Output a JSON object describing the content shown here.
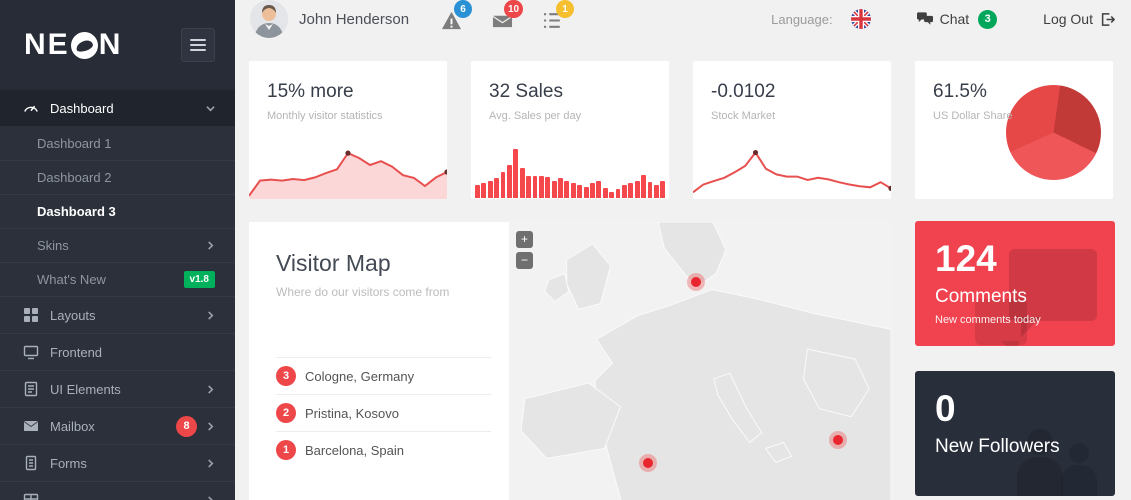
{
  "colors": {
    "accent_red": "#ee4749",
    "sidebar_bg": "#2b303a",
    "content_bg": "#f1f1f1",
    "green_badge": "#00b15c",
    "blue_badge": "#2a92d4",
    "yellow_badge": "#f5bf2f"
  },
  "sidebar": {
    "logo_part1": "NE",
    "logo_part2": "N",
    "items": [
      {
        "label": "Dashboard"
      },
      {
        "label": "Dashboard 1"
      },
      {
        "label": "Dashboard 2"
      },
      {
        "label": "Dashboard 3"
      },
      {
        "label": "Skins"
      },
      {
        "label": "What's New",
        "badge": "v1.8"
      },
      {
        "label": "Layouts"
      },
      {
        "label": "Frontend"
      },
      {
        "label": "UI Elements"
      },
      {
        "label": "Mailbox",
        "badge": "8"
      },
      {
        "label": "Forms"
      }
    ]
  },
  "topbar": {
    "user_name": "John Henderson",
    "alerts_count": "6",
    "messages_count": "10",
    "tasks_count": "1",
    "language_label": "Language:",
    "chat_label": "Chat",
    "chat_count": "3",
    "logout_label": "Log Out"
  },
  "stats": [
    {
      "title": "15% more",
      "subtitle": "Monthly visitor statistics"
    },
    {
      "title": "32 Sales",
      "subtitle": "Avg. Sales per day"
    },
    {
      "title": "-0.0102",
      "subtitle": "Stock Market"
    },
    {
      "title": "61.5%",
      "subtitle": "US Dollar Share"
    }
  ],
  "visitor_map": {
    "title": "Visitor Map",
    "subtitle": "Where do our visitors come from",
    "locations": [
      {
        "count": "3",
        "label": "Cologne, Germany"
      },
      {
        "count": "2",
        "label": "Pristina, Kosovo"
      },
      {
        "count": "1",
        "label": "Barcelona, Spain"
      }
    ],
    "zoom_in": "+",
    "zoom_out": "−",
    "markers": [
      {
        "label": "Cologne, Germany",
        "x": 49,
        "y": 20
      },
      {
        "label": "Barcelona, Spain",
        "x": 36.5,
        "y": 81
      },
      {
        "label": "Pristina, Kosovo",
        "x": 86,
        "y": 73
      }
    ]
  },
  "tiles": {
    "comments": {
      "value": "124",
      "label": "Comments",
      "sublabel": "New comments today",
      "color": "#f0424f"
    },
    "followers": {
      "value": "0",
      "label": "New Followers",
      "color": "#282e3a"
    }
  },
  "chart_data": [
    {
      "type": "area",
      "name": "monthly-visitor-statistics",
      "title": "15% more",
      "values": [
        6,
        34,
        36,
        34,
        37,
        35,
        40,
        48,
        55,
        85,
        76,
        63,
        70,
        60,
        44,
        39,
        24,
        40,
        50
      ],
      "dots": [
        9,
        18
      ],
      "color": "#e8504f",
      "fill": "rgba(238,71,73,0.22)",
      "dot_color": "#6b2c2c"
    },
    {
      "type": "bar",
      "name": "avg-sales-per-day",
      "title": "32 Sales",
      "values": [
        25,
        28,
        33,
        38,
        50,
        63,
        95,
        58,
        43,
        43,
        42,
        40,
        33,
        39,
        33,
        28,
        25,
        22,
        28,
        33,
        20,
        12,
        18,
        25,
        28,
        33,
        45,
        30,
        25,
        33
      ],
      "color": "#f4484d"
    },
    {
      "type": "line",
      "name": "stock-market",
      "title": "-0.0102",
      "values": [
        3,
        17,
        23,
        29,
        39,
        50,
        74,
        45,
        35,
        31,
        31,
        25,
        29,
        26,
        21,
        17,
        14,
        12,
        21,
        10
      ],
      "dots": [
        6,
        19
      ],
      "color": "#e8504f",
      "dot_color": "#6b2c2c"
    },
    {
      "type": "pie",
      "name": "us-dollar-share",
      "title": "61.5%",
      "start_deg": 8,
      "slices": [
        {
          "value": 30,
          "color": "#c23a38"
        },
        {
          "value": 36,
          "color": "#ef5658"
        },
        {
          "value": 34,
          "color": "#e64848"
        }
      ]
    }
  ]
}
